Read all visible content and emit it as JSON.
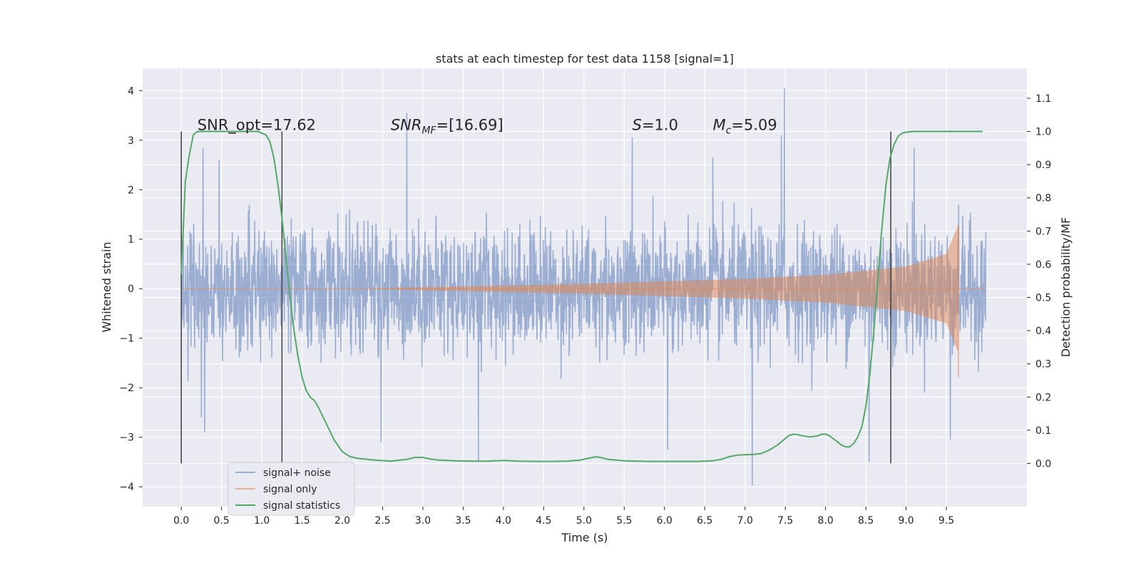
{
  "chart_data": {
    "type": "line",
    "title": "stats at each timestep for test data 1158 [signal=1]",
    "xlabel": "Time (s)",
    "ylabel": "Whitened strain",
    "y2label": "Detection probability/MF",
    "xlim": [
      -0.48,
      10.5
    ],
    "ylim": [
      -4.4,
      4.45
    ],
    "y2lim": [
      -0.13,
      1.19
    ],
    "xticks": [
      0.0,
      0.5,
      1.0,
      1.5,
      2.0,
      2.5,
      3.0,
      3.5,
      4.0,
      4.5,
      5.0,
      5.5,
      6.0,
      6.5,
      7.0,
      7.5,
      8.0,
      8.5,
      9.0,
      9.5
    ],
    "xtick_labels": [
      "0.0",
      "0.5",
      "1.0",
      "1.5",
      "2.0",
      "2.5",
      "3.0",
      "3.5",
      "4.0",
      "4.5",
      "5.0",
      "5.5",
      "6.0",
      "6.5",
      "7.0",
      "7.5",
      "8.0",
      "8.5",
      "9.0",
      "9.5"
    ],
    "yticks": [
      -4,
      -3,
      -2,
      -1,
      0,
      1,
      2,
      3,
      4
    ],
    "ytick_labels": [
      "−4",
      "−3",
      "−2",
      "−1",
      "0",
      "1",
      "2",
      "3",
      "4"
    ],
    "y2ticks": [
      0.0,
      0.1,
      0.2,
      0.3,
      0.4,
      0.5,
      0.6,
      0.7,
      0.8,
      0.9,
      1.0,
      1.1
    ],
    "y2tick_labels": [
      "0.0",
      "0.1",
      "0.2",
      "0.3",
      "0.4",
      "0.5",
      "0.6",
      "0.7",
      "0.8",
      "0.9",
      "1.0",
      "1.1"
    ],
    "grid": true,
    "legend_position": "lower-left",
    "colors": {
      "noise": "#4c72b0",
      "signal": "#dd8452",
      "stats": "#55a868",
      "background": "#eaeaf2",
      "vline": "#404040"
    },
    "series": [
      {
        "name": "signal+ noise",
        "axis": "left",
        "kind": "noise",
        "x_range": [
          0.0,
          9.99
        ],
        "envelope_sigma": 0.62,
        "extremes": [
          {
            "x": 0.27,
            "y": 2.85
          },
          {
            "x": 0.47,
            "y": 2.6
          },
          {
            "x": 2.8,
            "y": 3.55
          },
          {
            "x": 5.6,
            "y": 3.05
          },
          {
            "x": 7.49,
            "y": 4.05
          },
          {
            "x": 7.45,
            "y": 3.1
          },
          {
            "x": 6.6,
            "y": 2.65
          },
          {
            "x": 9.1,
            "y": 2.85
          },
          {
            "x": 0.29,
            "y": -2.9
          },
          {
            "x": 0.25,
            "y": -2.6
          },
          {
            "x": 2.48,
            "y": -3.1
          },
          {
            "x": 3.69,
            "y": -3.5
          },
          {
            "x": 6.04,
            "y": -3.25
          },
          {
            "x": 7.09,
            "y": -3.98
          },
          {
            "x": 8.54,
            "y": -3.5
          },
          {
            "x": 9.55,
            "y": -3.05
          }
        ]
      },
      {
        "name": "signal only",
        "axis": "left",
        "kind": "chirp",
        "start": 2.2,
        "merger": 9.65,
        "amplitude_at": [
          [
            3.0,
            0.03
          ],
          [
            5.0,
            0.1
          ],
          [
            7.0,
            0.2
          ],
          [
            8.0,
            0.28
          ],
          [
            9.0,
            0.45
          ],
          [
            9.5,
            0.7
          ],
          [
            9.65,
            1.3
          ]
        ]
      },
      {
        "name": "signal statistics",
        "axis": "right",
        "kind": "line",
        "x": [
          0.0,
          0.05,
          0.1,
          0.15,
          0.2,
          0.4,
          0.6,
          0.8,
          0.95,
          1.05,
          1.1,
          1.15,
          1.2,
          1.25,
          1.3,
          1.35,
          1.4,
          1.45,
          1.5,
          1.55,
          1.6,
          1.65,
          1.7,
          1.8,
          1.9,
          2.0,
          2.1,
          2.2,
          2.4,
          2.6,
          2.8,
          2.9,
          3.0,
          3.1,
          3.2,
          3.4,
          3.6,
          3.8,
          4.0,
          4.2,
          4.4,
          4.6,
          4.8,
          4.95,
          5.05,
          5.15,
          5.2,
          5.3,
          5.5,
          5.8,
          6.1,
          6.4,
          6.6,
          6.7,
          6.8,
          6.9,
          7.0,
          7.1,
          7.2,
          7.3,
          7.4,
          7.5,
          7.55,
          7.6,
          7.65,
          7.7,
          7.8,
          7.9,
          7.95,
          8.0,
          8.05,
          8.1,
          8.2,
          8.25,
          8.3,
          8.35,
          8.4,
          8.45,
          8.5,
          8.55,
          8.6,
          8.65,
          8.7,
          8.75,
          8.8,
          8.85,
          8.9,
          8.95,
          9.0,
          9.1,
          9.3,
          9.5,
          9.7,
          9.9,
          9.95
        ],
        "y": [
          0.57,
          0.85,
          0.93,
          0.99,
          1.0,
          1.0,
          1.0,
          1.0,
          1.0,
          0.99,
          0.97,
          0.92,
          0.84,
          0.74,
          0.62,
          0.5,
          0.4,
          0.32,
          0.26,
          0.22,
          0.2,
          0.19,
          0.17,
          0.12,
          0.07,
          0.035,
          0.02,
          0.015,
          0.01,
          0.007,
          0.012,
          0.018,
          0.018,
          0.013,
          0.01,
          0.008,
          0.007,
          0.007,
          0.009,
          0.007,
          0.006,
          0.006,
          0.007,
          0.01,
          0.015,
          0.02,
          0.018,
          0.012,
          0.008,
          0.006,
          0.006,
          0.006,
          0.008,
          0.012,
          0.02,
          0.025,
          0.026,
          0.027,
          0.03,
          0.04,
          0.055,
          0.075,
          0.085,
          0.088,
          0.087,
          0.084,
          0.08,
          0.083,
          0.088,
          0.088,
          0.083,
          0.074,
          0.055,
          0.05,
          0.05,
          0.06,
          0.08,
          0.11,
          0.17,
          0.27,
          0.4,
          0.56,
          0.71,
          0.84,
          0.92,
          0.96,
          0.985,
          0.995,
          0.998,
          1.0,
          1.0,
          1.0,
          1.0,
          1.0,
          1.0
        ]
      }
    ],
    "vlines": [
      0.0,
      1.25,
      8.81
    ],
    "vline_range_right": [
      0.0,
      1.0
    ],
    "annotations": [
      {
        "id": "snr-opt",
        "x": 0.2,
        "y2": 1.0,
        "label": "SNR_opt=17.62"
      },
      {
        "id": "snr-mf",
        "x": 2.6,
        "y2": 1.0,
        "base": "SNR",
        "sub": "MF",
        "tail": "=[16.69]"
      },
      {
        "id": "s-value",
        "x": 5.6,
        "y2": 1.0,
        "base": "S",
        "tail": "=1.0"
      },
      {
        "id": "mc-value",
        "x": 6.6,
        "y2": 1.0,
        "base": "M",
        "sub": "c",
        "tail": "=5.09"
      }
    ],
    "legend": [
      "signal+ noise",
      "signal only",
      "signal statistics"
    ]
  }
}
